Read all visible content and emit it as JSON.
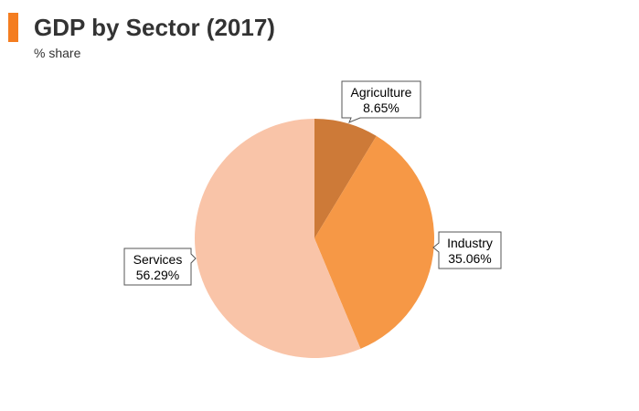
{
  "title": "GDP by Sector (2017)",
  "subtitle": "% share",
  "colors": {
    "accent": "#f47d20"
  },
  "chart_data": {
    "type": "pie",
    "title": "GDP by Sector (2017)",
    "subtitle": "% share",
    "unit": "%",
    "start_angle_deg": 0,
    "direction": "clockwise",
    "legend": "none",
    "slices": [
      {
        "name": "Agriculture",
        "value": 8.65,
        "label": "8.65%",
        "color": "#cd7a38"
      },
      {
        "name": "Industry",
        "value": 35.06,
        "label": "35.06%",
        "color": "#f69846"
      },
      {
        "name": "Services",
        "value": 56.29,
        "label": "56.29%",
        "color": "#f9c4a8"
      }
    ]
  }
}
